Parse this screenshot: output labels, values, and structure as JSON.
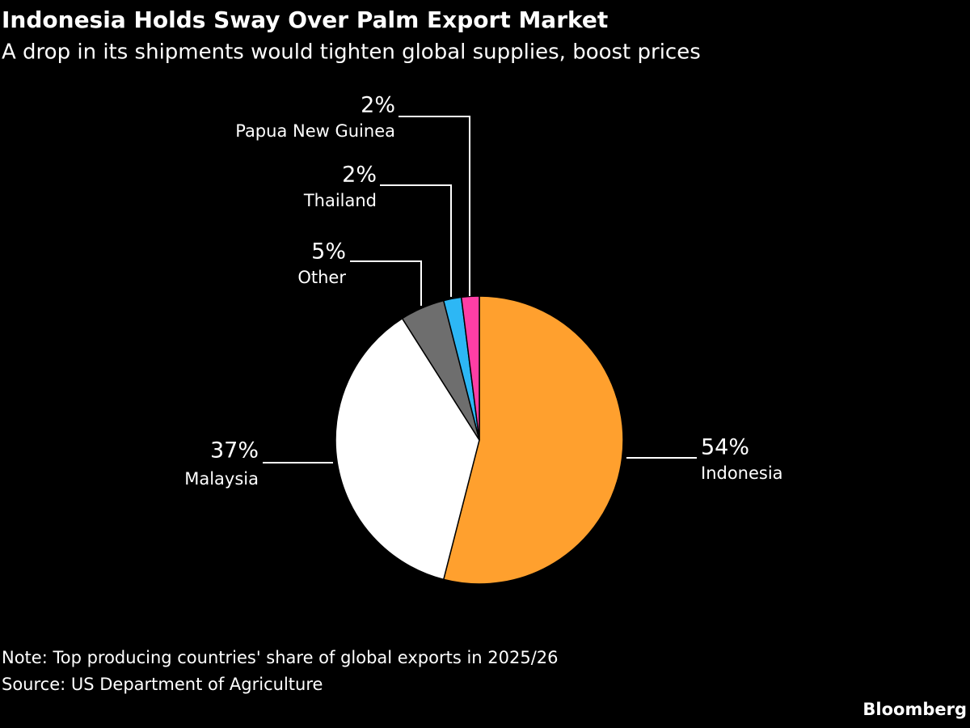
{
  "chart_data": {
    "type": "pie",
    "title": "Indonesia Holds Sway Over Palm Export Market",
    "subtitle": "A drop in its shipments would tighten global supplies, boost prices",
    "categories": [
      "Indonesia",
      "Malaysia",
      "Other",
      "Thailand",
      "Papua New Guinea"
    ],
    "values": [
      54,
      37,
      5,
      2,
      2
    ],
    "value_labels": [
      "54%",
      "37%",
      "5%",
      "2%",
      "2%"
    ],
    "colors": [
      "#ffa02e",
      "#ffffff",
      "#6e6e6e",
      "#2db7f5",
      "#ff3ea5"
    ],
    "note": "Note: Top producing countries' share of global exports in 2025/26",
    "source": "Source: US Department of Agriculture",
    "credit": "Bloomberg"
  }
}
